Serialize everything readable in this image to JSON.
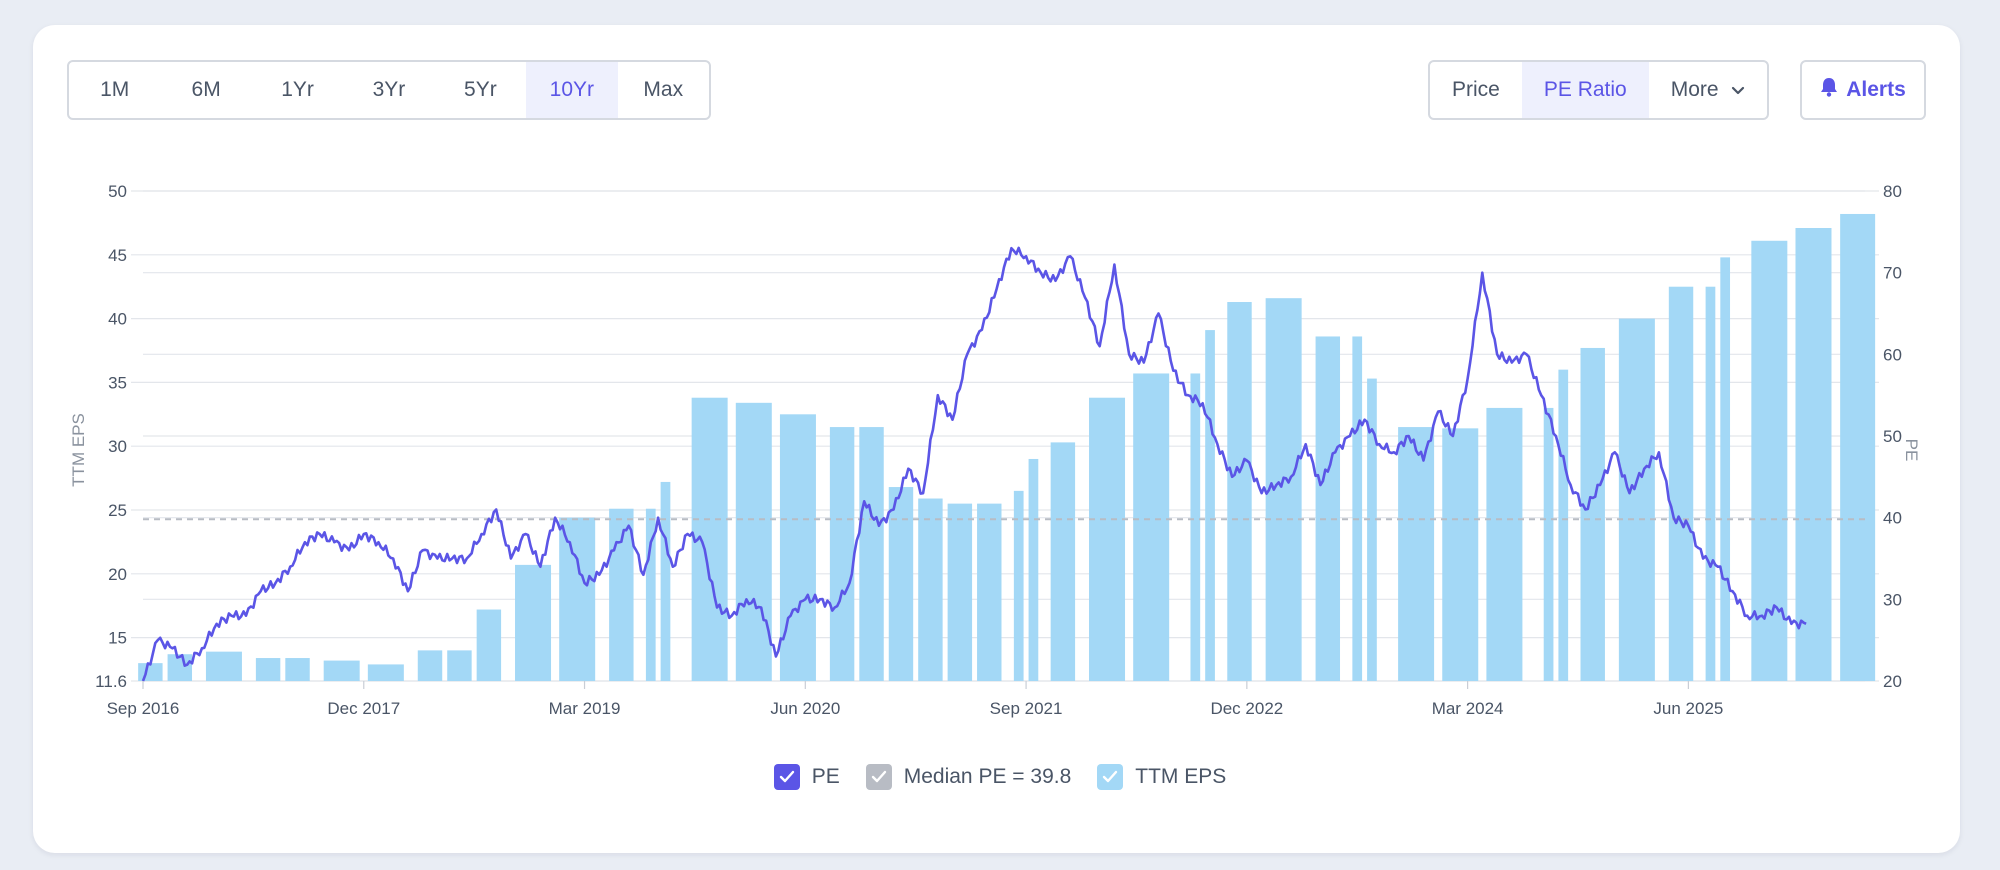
{
  "range_tabs": [
    {
      "label": "1M",
      "active": false
    },
    {
      "label": "6M",
      "active": false
    },
    {
      "label": "1Yr",
      "active": false
    },
    {
      "label": "3Yr",
      "active": false
    },
    {
      "label": "5Yr",
      "active": false
    },
    {
      "label": "10Yr",
      "active": true
    },
    {
      "label": "Max",
      "active": false
    }
  ],
  "view_tabs": [
    {
      "label": "Price",
      "active": false
    },
    {
      "label": "PE Ratio",
      "active": true
    },
    {
      "label": "More",
      "active": false
    }
  ],
  "alerts": {
    "label": "Alerts",
    "icon": "bell-icon"
  },
  "colors": {
    "accent": "#5b55e6",
    "bar": "#a3d8f6",
    "median": "#b8bcc4"
  },
  "legend": {
    "pe": "PE",
    "median": "Median PE = 39.8",
    "eps": "TTM EPS"
  },
  "chart_data": {
    "type": "bar+line",
    "xlabel": "",
    "ylabel_left": "TTM EPS",
    "ylabel_right": "PE",
    "left_ticks": [
      "50",
      "45",
      "40",
      "35",
      "30",
      "25",
      "20",
      "15",
      "11.6"
    ],
    "right_ticks": [
      "80",
      "70",
      "60",
      "50",
      "40",
      "30",
      "20"
    ],
    "ylim_left": [
      11.6,
      50
    ],
    "ylim_right": [
      20,
      80
    ],
    "x_ticks": [
      "Sep 2016",
      "Dec 2017",
      "Mar 2019",
      "Jun 2020",
      "Sep 2021",
      "Dec 2022",
      "Mar 2024",
      "Jun 2025"
    ],
    "x_range": [
      "2016-09",
      "2026-06"
    ],
    "median_pe": 39.8,
    "grid": true,
    "legend_position": "bottom-center",
    "eps_series": {
      "name": "TTM EPS",
      "dates": [
        "2016-09",
        "2016-11",
        "2017-02",
        "2017-05",
        "2017-07",
        "2017-10",
        "2018-01",
        "2018-04",
        "2018-06",
        "2018-08",
        "2018-11",
        "2019-02",
        "2019-05",
        "2019-07",
        "2019-08",
        "2019-11",
        "2020-02",
        "2020-05",
        "2020-08",
        "2020-10",
        "2020-12",
        "2021-02",
        "2021-04",
        "2021-06",
        "2021-08",
        "2021-09",
        "2021-11",
        "2022-02",
        "2022-05",
        "2022-08",
        "2022-09",
        "2022-11",
        "2023-02",
        "2023-05",
        "2023-07",
        "2023-08",
        "2023-11",
        "2024-02",
        "2024-05",
        "2024-08",
        "2024-09",
        "2024-11",
        "2025-02",
        "2025-05",
        "2025-07",
        "2025-08",
        "2025-11",
        "2026-02",
        "2026-05"
      ],
      "values": [
        13.0,
        13.7,
        13.9,
        13.4,
        13.4,
        13.2,
        12.9,
        14.0,
        14.0,
        17.2,
        20.7,
        24.4,
        25.1,
        25.1,
        27.2,
        33.8,
        33.4,
        32.5,
        31.5,
        31.5,
        26.8,
        25.9,
        25.5,
        25.5,
        26.5,
        29.0,
        30.3,
        33.8,
        35.7,
        35.7,
        39.1,
        41.3,
        41.6,
        38.6,
        38.6,
        35.3,
        31.5,
        31.4,
        33.0,
        33.0,
        36.0,
        37.7,
        40.0,
        42.5,
        42.5,
        44.8,
        46.1,
        47.1,
        48.2
      ]
    },
    "pe_series": {
      "name": "PE",
      "points": [
        [
          "2016-09",
          20
        ],
        [
          "2016-10",
          25
        ],
        [
          "2016-11",
          24
        ],
        [
          "2016-12",
          22
        ],
        [
          "2017-01",
          24
        ],
        [
          "2017-02",
          27
        ],
        [
          "2017-03",
          28
        ],
        [
          "2017-04",
          28
        ],
        [
          "2017-05",
          31
        ],
        [
          "2017-06",
          32
        ],
        [
          "2017-07",
          34
        ],
        [
          "2017-08",
          37
        ],
        [
          "2017-09",
          38
        ],
        [
          "2017-10",
          37
        ],
        [
          "2017-11",
          36
        ],
        [
          "2017-12",
          38
        ],
        [
          "2018-01",
          37
        ],
        [
          "2018-02",
          35
        ],
        [
          "2018-03",
          31
        ],
        [
          "2018-04",
          36
        ],
        [
          "2018-05",
          35
        ],
        [
          "2018-06",
          35
        ],
        [
          "2018-07",
          35
        ],
        [
          "2018-08",
          38
        ],
        [
          "2018-09",
          41
        ],
        [
          "2018-10",
          35
        ],
        [
          "2018-11",
          38
        ],
        [
          "2018-12",
          34
        ],
        [
          "2019-01",
          40
        ],
        [
          "2019-02",
          37
        ],
        [
          "2019-03",
          32
        ],
        [
          "2019-04",
          33
        ],
        [
          "2019-05",
          36
        ],
        [
          "2019-06",
          39
        ],
        [
          "2019-07",
          33
        ],
        [
          "2019-08",
          40
        ],
        [
          "2019-09",
          34
        ],
        [
          "2019-10",
          38
        ],
        [
          "2019-11",
          37
        ],
        [
          "2019-12",
          29
        ],
        [
          "2020-01",
          28
        ],
        [
          "2020-02",
          30
        ],
        [
          "2020-03",
          29
        ],
        [
          "2020-04",
          23
        ],
        [
          "2020-05",
          28
        ],
        [
          "2020-06",
          30
        ],
        [
          "2020-07",
          30
        ],
        [
          "2020-08",
          29
        ],
        [
          "2020-09",
          32
        ],
        [
          "2020-10",
          42
        ],
        [
          "2020-11",
          39
        ],
        [
          "2020-12",
          41
        ],
        [
          "2021-01",
          46
        ],
        [
          "2021-02",
          43
        ],
        [
          "2021-03",
          55
        ],
        [
          "2021-04",
          52
        ],
        [
          "2021-05",
          60
        ],
        [
          "2021-06",
          63
        ],
        [
          "2021-07",
          68
        ],
        [
          "2021-08",
          73
        ],
        [
          "2021-09",
          72
        ],
        [
          "2021-10",
          70
        ],
        [
          "2021-11",
          69
        ],
        [
          "2021-12",
          72
        ],
        [
          "2022-01",
          67
        ],
        [
          "2022-02",
          61
        ],
        [
          "2022-03",
          71
        ],
        [
          "2022-04",
          60
        ],
        [
          "2022-05",
          59
        ],
        [
          "2022-06",
          65
        ],
        [
          "2022-07",
          58
        ],
        [
          "2022-08",
          55
        ],
        [
          "2022-09",
          54
        ],
        [
          "2022-10",
          49
        ],
        [
          "2022-11",
          45
        ],
        [
          "2022-12",
          47
        ],
        [
          "2023-01",
          43
        ],
        [
          "2023-02",
          44
        ],
        [
          "2023-03",
          45
        ],
        [
          "2023-04",
          49
        ],
        [
          "2023-05",
          44
        ],
        [
          "2023-06",
          48
        ],
        [
          "2023-07",
          50
        ],
        [
          "2023-08",
          52
        ],
        [
          "2023-09",
          49
        ],
        [
          "2023-10",
          48
        ],
        [
          "2023-11",
          50
        ],
        [
          "2023-12",
          47
        ],
        [
          "2024-01",
          53
        ],
        [
          "2024-02",
          50
        ],
        [
          "2024-03",
          57
        ],
        [
          "2024-04",
          70
        ],
        [
          "2024-05",
          60
        ],
        [
          "2024-06",
          59
        ],
        [
          "2024-07",
          60
        ],
        [
          "2024-08",
          55
        ],
        [
          "2024-09",
          50
        ],
        [
          "2024-10",
          44
        ],
        [
          "2024-11",
          41
        ],
        [
          "2024-12",
          44
        ],
        [
          "2025-01",
          48
        ],
        [
          "2025-02",
          43
        ],
        [
          "2025-03",
          46
        ],
        [
          "2025-04",
          48
        ],
        [
          "2025-05",
          40
        ],
        [
          "2025-06",
          39
        ],
        [
          "2025-07",
          35
        ],
        [
          "2025-08",
          34
        ],
        [
          "2025-09",
          31
        ],
        [
          "2025-10",
          28
        ],
        [
          "2025-11",
          28
        ],
        [
          "2025-12",
          29
        ],
        [
          "2026-01",
          27
        ],
        [
          "2026-02",
          27
        ]
      ]
    }
  }
}
